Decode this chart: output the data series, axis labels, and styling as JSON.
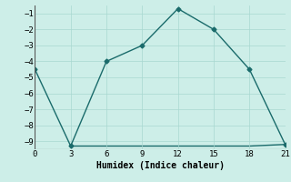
{
  "xlabel": "Humidex (Indice chaleur)",
  "x_main": [
    0,
    3,
    6,
    9,
    12,
    15,
    18,
    21
  ],
  "y_main": [
    -4.5,
    -9.3,
    -4.0,
    -3.0,
    -0.7,
    -2.0,
    -4.5,
    -9.2
  ],
  "x_flat": [
    3,
    9,
    12,
    15,
    18,
    21
  ],
  "y_flat": [
    -9.3,
    -9.3,
    -9.3,
    -9.3,
    -9.3,
    -9.2
  ],
  "line_color": "#1a6b6b",
  "bg_color": "#cdeee8",
  "grid_color": "#a8d8d0",
  "xlim": [
    0,
    21
  ],
  "ylim": [
    -9.5,
    -0.5
  ],
  "xticks": [
    0,
    3,
    6,
    9,
    12,
    15,
    18,
    21
  ],
  "yticks": [
    -1,
    -2,
    -3,
    -4,
    -5,
    -6,
    -7,
    -8,
    -9
  ],
  "marker": "D",
  "marker_size": 2.5,
  "line_width": 1.0
}
